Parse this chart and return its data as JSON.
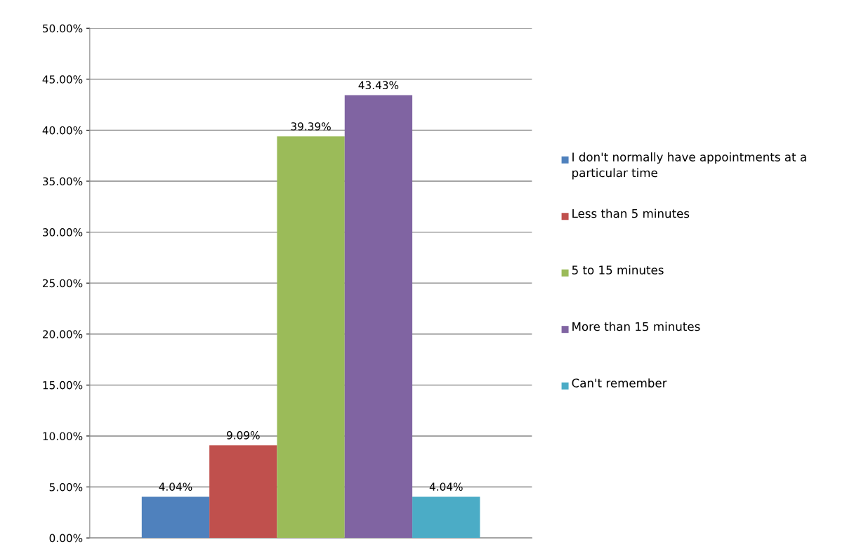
{
  "chart_data": {
    "type": "bar",
    "categories": [
      null
    ],
    "series": [
      {
        "name": "I don't normally have appointments at a particular time",
        "color": "#4f81bd",
        "values": [
          4.04
        ],
        "value_labels": [
          "4.04%"
        ]
      },
      {
        "name": "Less than 5 minutes",
        "color": "#c0504d",
        "values": [
          9.09
        ],
        "value_labels": [
          "9.09%"
        ]
      },
      {
        "name": "5 to 15 minutes",
        "color": "#9bbb59",
        "values": [
          39.39
        ],
        "value_labels": [
          "39.39%"
        ]
      },
      {
        "name": "More than 15 minutes",
        "color": "#8064a2",
        "values": [
          43.43
        ],
        "value_labels": [
          "43.43%"
        ]
      },
      {
        "name": "Can't remember",
        "color": "#4bacc6",
        "values": [
          4.04
        ],
        "value_labels": [
          "4.04%"
        ]
      }
    ],
    "ylim": [
      0,
      50
    ],
    "yticks": [
      {
        "value": 0,
        "label": "0.00%"
      },
      {
        "value": 5,
        "label": "5.00%"
      },
      {
        "value": 10,
        "label": "10.00%"
      },
      {
        "value": 15,
        "label": "15.00%"
      },
      {
        "value": 20,
        "label": "20.00%"
      },
      {
        "value": 25,
        "label": "25.00%"
      },
      {
        "value": 30,
        "label": "30.00%"
      },
      {
        "value": 35,
        "label": "35.00%"
      },
      {
        "value": 40,
        "label": "40.00%"
      },
      {
        "value": 45,
        "label": "45.00%"
      },
      {
        "value": 50,
        "label": "50.00%"
      }
    ],
    "grid": "y",
    "legend": "right"
  }
}
